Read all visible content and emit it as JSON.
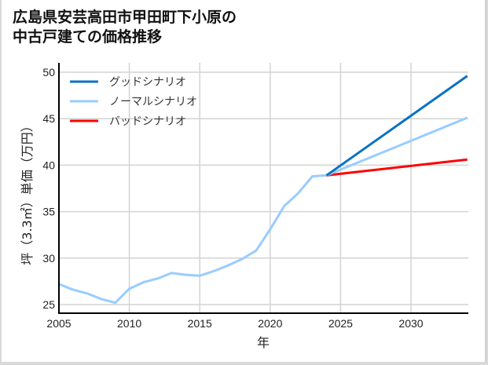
{
  "title_line1": "広島県安芸高田市甲田町下小原の",
  "title_line2": "中古戸建ての価格推移",
  "chart_data": {
    "type": "line",
    "title": "広島県安芸高田市甲田町下小原の中古戸建ての価格推移",
    "xlabel": "年",
    "ylabel": "坪（3.3㎡）単価（万円）",
    "xlim": [
      2005,
      2034
    ],
    "ylim": [
      24,
      50.5
    ],
    "xticks": [
      2005,
      2010,
      2015,
      2020,
      2025,
      2030
    ],
    "yticks": [
      25,
      30,
      35,
      40,
      45,
      50
    ],
    "grid": true,
    "legend_position": "upper left",
    "historical": {
      "name": "ノーマルシナリオ",
      "x": [
        2005,
        2006,
        2007,
        2008,
        2009,
        2010,
        2011,
        2012,
        2013,
        2014,
        2015,
        2016,
        2017,
        2018,
        2019,
        2020,
        2021,
        2022,
        2023,
        2024
      ],
      "values": [
        27.2,
        26.6,
        26.2,
        25.6,
        25.2,
        26.7,
        27.4,
        27.8,
        28.4,
        28.2,
        28.1,
        28.6,
        29.2,
        29.9,
        30.8,
        33.1,
        35.6,
        37.0,
        38.8,
        38.9
      ]
    },
    "series": [
      {
        "name": "グッドシナリオ",
        "color": "#0a72c4",
        "x": [
          2024,
          2034
        ],
        "values": [
          38.9,
          49.6
        ]
      },
      {
        "name": "ノーマルシナリオ",
        "color": "#99ccff",
        "x": [
          2024,
          2034
        ],
        "values": [
          38.9,
          45.1
        ]
      },
      {
        "name": "バッドシナリオ",
        "color": "#ff0000",
        "x": [
          2024,
          2034
        ],
        "values": [
          38.9,
          40.6
        ]
      }
    ]
  },
  "legend": [
    {
      "label": "グッドシナリオ",
      "color": "#0a72c4"
    },
    {
      "label": "ノーマルシナリオ",
      "color": "#99ccff"
    },
    {
      "label": "バッドシナリオ",
      "color": "#ff0000"
    }
  ]
}
